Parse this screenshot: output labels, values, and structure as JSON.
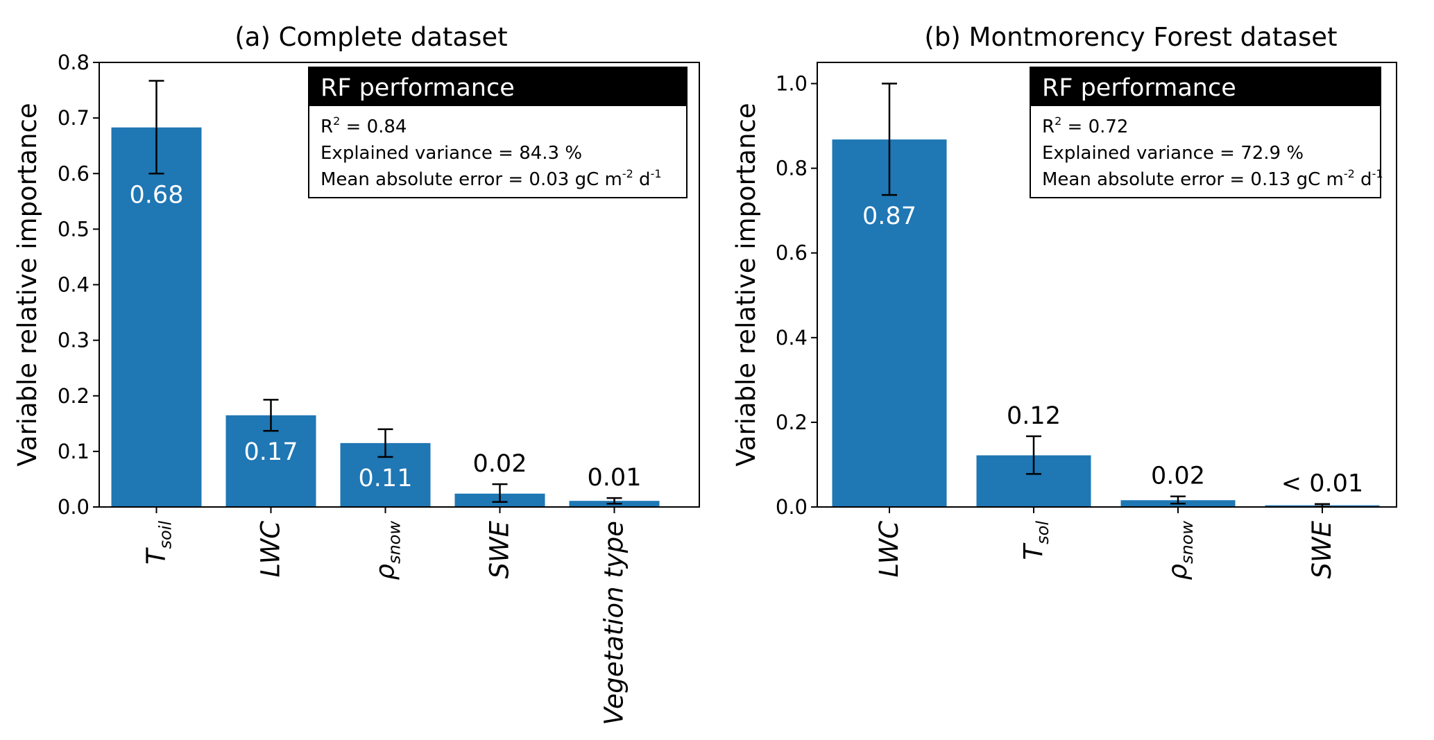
{
  "chart_data": [
    {
      "type": "bar",
      "title": "(a) Complete dataset",
      "ylabel": "Variable relative importance",
      "xlabel": "",
      "ylim": [
        0,
        0.8
      ],
      "yticks": [
        "0.0",
        "0.1",
        "0.2",
        "0.3",
        "0.4",
        "0.5",
        "0.6",
        "0.7",
        "0.8"
      ],
      "categories": [
        {
          "main": "T",
          "sub": "soil"
        },
        {
          "main": "LWC",
          "sub": ""
        },
        {
          "main": "ρ",
          "sub": "snow"
        },
        {
          "main": "SWE",
          "sub": ""
        },
        {
          "main": "Vegetation type",
          "sub": ""
        }
      ],
      "values": [
        0.683,
        0.165,
        0.115,
        0.024,
        0.011
      ],
      "error_low": [
        0.6,
        0.137,
        0.09,
        0.009,
        0.006
      ],
      "error_high": [
        0.767,
        0.193,
        0.14,
        0.041,
        0.016
      ],
      "value_labels": [
        "0.68",
        "0.17",
        "0.11",
        "0.02",
        "0.01"
      ],
      "label_inside": [
        true,
        true,
        true,
        false,
        false
      ],
      "bar_color": "#1f77b4",
      "performance_box": {
        "header": "RF performance",
        "r2_prefix": "R",
        "r2_sup": "2",
        "r2_value": " = 0.84",
        "variance": "Explained variance = 84.3 %",
        "mae_prefix": "Mean absolute error = 0.03 gC m",
        "mae_sup1": "-2",
        "mae_mid": " d",
        "mae_sup2": "-1"
      }
    },
    {
      "type": "bar",
      "title": "(b) Montmorency Forest dataset",
      "ylabel": "Variable relative importance",
      "xlabel": "",
      "ylim": [
        0,
        1.05
      ],
      "ytick_values": [
        0,
        0.2,
        0.4,
        0.6,
        0.8,
        1.0
      ],
      "yticks": [
        "0.0",
        "0.2",
        "0.4",
        "0.6",
        "0.8",
        "1.0"
      ],
      "categories": [
        {
          "main": "LWC",
          "sub": ""
        },
        {
          "main": "T",
          "sub": "sol"
        },
        {
          "main": "ρ",
          "sub": "snow"
        },
        {
          "main": "SWE",
          "sub": ""
        }
      ],
      "values": [
        0.868,
        0.122,
        0.016,
        0.004
      ],
      "error_low": [
        0.737,
        0.078,
        0.008,
        0.001
      ],
      "error_high": [
        1.0,
        0.167,
        0.025,
        0.007
      ],
      "value_labels": [
        "0.87",
        "0.12",
        "0.02",
        "< 0.01"
      ],
      "label_inside": [
        true,
        false,
        false,
        false
      ],
      "bar_color": "#1f77b4",
      "performance_box": {
        "header": "RF performance",
        "r2_prefix": "R",
        "r2_sup": "2",
        "r2_value": " = 0.72",
        "variance": "Explained variance = 72.9 %",
        "mae_prefix": "Mean absolute error = 0.13 gC m",
        "mae_sup1": "-2",
        "mae_mid": " d",
        "mae_sup2": "-1"
      }
    }
  ]
}
